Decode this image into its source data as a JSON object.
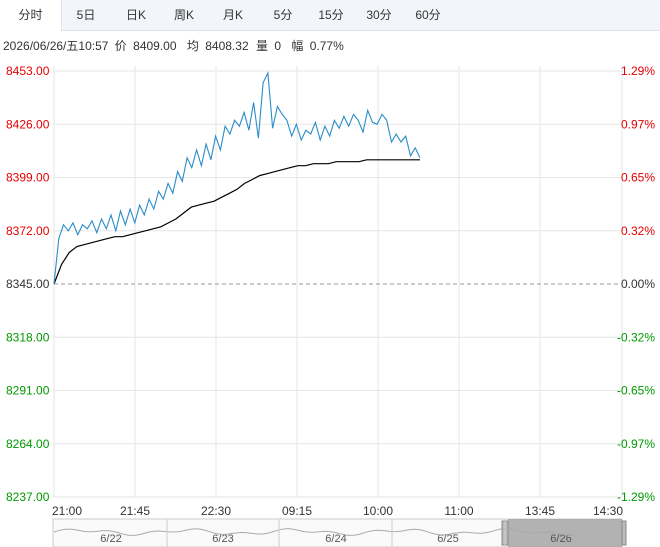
{
  "tabs": [
    {
      "label": "分时",
      "active": true
    },
    {
      "label": "5日"
    },
    {
      "label": "日K"
    },
    {
      "label": "周K"
    },
    {
      "label": "月K"
    },
    {
      "label": "5分"
    },
    {
      "label": "15分"
    },
    {
      "label": "30分"
    },
    {
      "label": "60分"
    }
  ],
  "info": {
    "datetime": "2026/06/26/五10:57",
    "price_label": "价",
    "price": "8409.00",
    "avg_label": "均",
    "avg": "8408.32",
    "volume_label": "量",
    "volume": "0",
    "change_label": "幅",
    "change": "0.77%"
  },
  "colors": {
    "up": "#e60000",
    "down": "#009900",
    "price_line": "#2a8cc8",
    "avg_line": "#000000",
    "grid": "#e6e6e6"
  },
  "chart_data": {
    "type": "line",
    "title": "",
    "y_left_labels": [
      "8453.00",
      "8426.00",
      "8399.00",
      "8372.00",
      "8345.00",
      "8318.00",
      "8291.00",
      "8264.00",
      "8237.00"
    ],
    "y_right_labels": [
      "1.29%",
      "0.97%",
      "0.65%",
      "0.32%",
      "0.00%",
      "-0.32%",
      "-0.65%",
      "-0.97%",
      "-1.29%"
    ],
    "ylim": [
      8237,
      8453
    ],
    "prev_close": 8345,
    "x_labels": [
      "21:00",
      "21:45",
      "22:30",
      "09:15",
      "10:00",
      "11:00",
      "13:45",
      "14:30"
    ],
    "series": [
      {
        "values": [
          8345,
          8368,
          8375,
          8372,
          8376,
          8370,
          8375,
          8373,
          8377,
          8371,
          8378,
          8373,
          8380,
          8372,
          8382,
          8375,
          8383,
          8376,
          8385,
          8380,
          8388,
          8383,
          8392,
          8388,
          8396,
          8391,
          8402,
          8397,
          8409,
          8404,
          8413,
          8405,
          8416,
          8408,
          8420,
          8413,
          8425,
          8421,
          8428,
          8425,
          8432,
          8423,
          8437,
          8419,
          8447,
          8452,
          8424,
          8435,
          8431,
          8428,
          8420,
          8426,
          8418,
          8423,
          8421,
          8427,
          8418,
          8425,
          8420,
          8428,
          8424,
          8430,
          8425,
          8431,
          8428,
          8422,
          8433,
          8427,
          8426,
          8431,
          8428,
          8417,
          8421,
          8417,
          8420,
          8410,
          8414,
          8409
        ]
      },
      {
        "values": [
          8345,
          8355,
          8361,
          8364,
          8365,
          8366,
          8367,
          8368,
          8369,
          8369,
          8370,
          8371,
          8372,
          8373,
          8374,
          8376,
          8378,
          8381,
          8384,
          8385,
          8386,
          8387,
          8389,
          8391,
          8393,
          8396,
          8398,
          8400,
          8401,
          8402,
          8403,
          8404,
          8405,
          8405,
          8406,
          8406,
          8406,
          8407,
          8407,
          8407,
          8407,
          8408,
          8408,
          8408,
          8408,
          8408,
          8408,
          8408,
          8408
        ]
      }
    ],
    "navigator_days": [
      "6/22",
      "6/23",
      "6/24",
      "6/25",
      "6/26"
    ]
  }
}
